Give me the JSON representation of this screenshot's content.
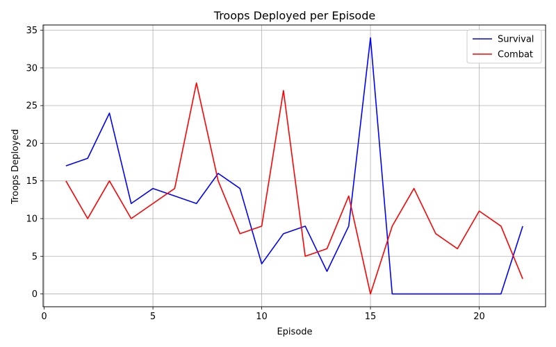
{
  "chart_data": {
    "type": "line",
    "title": "Troops Deployed per Episode",
    "xlabel": "Episode",
    "ylabel": "Troops Deployed",
    "xlim": [
      -0.05,
      23.05
    ],
    "ylim": [
      -1.7,
      35.7
    ],
    "xticks": [
      0,
      5,
      10,
      15,
      20
    ],
    "yticks": [
      0,
      5,
      10,
      15,
      20,
      25,
      30,
      35
    ],
    "grid": true,
    "legend_position": "top-right",
    "x": [
      1,
      2,
      3,
      4,
      5,
      6,
      7,
      8,
      9,
      10,
      11,
      12,
      13,
      14,
      15,
      16,
      17,
      18,
      19,
      20,
      21,
      22
    ],
    "series": [
      {
        "name": "Survival",
        "color": "#0000ff",
        "values": [
          17,
          18,
          24,
          12,
          14,
          13,
          12,
          16,
          14,
          4,
          8,
          9,
          3,
          9,
          34,
          0,
          0,
          0,
          0,
          0,
          0,
          9
        ]
      },
      {
        "name": "Combat",
        "color": "#ff0000",
        "values": [
          15,
          10,
          15,
          10,
          12,
          14,
          28,
          15,
          8,
          9,
          27,
          5,
          6,
          13,
          0,
          9,
          14,
          8,
          6,
          11,
          9,
          2
        ]
      }
    ]
  }
}
